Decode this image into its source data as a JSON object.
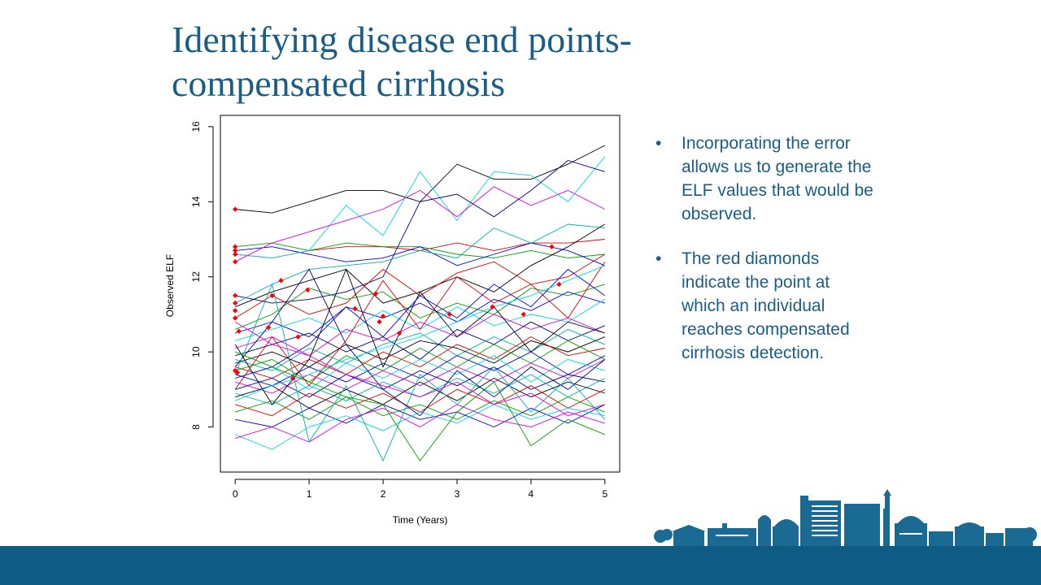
{
  "slide": {
    "title_lines": [
      "Identifying disease end points-",
      "compensated cirrhosis"
    ],
    "bullets": [
      "Incorporating the error allows us to generate the ELF values that would be observed.",
      "The red diamonds indicate the point at which an individual reaches compensated cirrhosis detection."
    ],
    "bullet_symbol": "•",
    "colors": {
      "title": "#1a5d86",
      "bullets": "#1a5d86",
      "footer": "#0e5c84",
      "skyline": "#1a6a93"
    }
  },
  "chart_data": {
    "type": "line",
    "xlabel": "Time (Years)",
    "ylabel": "Observed ELF",
    "xlim": [
      -0.2,
      5.2
    ],
    "ylim": [
      6.8,
      16.3
    ],
    "xticks": [
      0,
      1,
      2,
      3,
      4,
      5
    ],
    "yticks": [
      8,
      10,
      12,
      14,
      16
    ],
    "x": [
      0,
      0.5,
      1,
      1.5,
      2,
      2.5,
      3,
      3.5,
      4,
      4.5,
      5
    ],
    "colors": [
      "#000000",
      "#dd0000",
      "#00a000",
      "#0000dd",
      "#00d8e8",
      "#e000e0",
      "#000080",
      "#00b0b0"
    ],
    "series": [
      {
        "values": [
          13.8,
          13.7,
          14.0,
          14.3,
          14.3,
          14.0,
          15.0,
          14.6,
          14.6,
          15.0,
          15.5
        ]
      },
      {
        "values": [
          12.6,
          12.5,
          12.7,
          12.8,
          12.8,
          12.7,
          12.9,
          12.7,
          12.9,
          12.9,
          13.0
        ]
      },
      {
        "values": [
          12.8,
          12.9,
          12.7,
          12.9,
          12.8,
          12.8,
          12.6,
          12.5,
          12.7,
          12.5,
          12.6
        ]
      },
      {
        "values": [
          12.7,
          12.8,
          12.6,
          12.4,
          12.5,
          12.8,
          12.3,
          12.6,
          12.9,
          12.7,
          12.3
        ]
      },
      {
        "values": [
          12.6,
          12.5,
          12.7,
          13.9,
          13.1,
          14.8,
          13.5,
          14.8,
          14.7,
          14.0,
          15.2
        ]
      },
      {
        "values": [
          12.4,
          12.9,
          13.2,
          13.5,
          13.8,
          14.3,
          13.6,
          14.4,
          13.9,
          14.3,
          13.8
        ]
      },
      {
        "values": [
          11.5,
          11.3,
          11.4,
          11.6,
          12.0,
          14.0,
          14.2,
          13.6,
          14.3,
          15.1,
          14.8
        ]
      },
      {
        "values": [
          11.3,
          11.8,
          12.2,
          12.3,
          12.4,
          12.7,
          12.5,
          13.3,
          12.9,
          13.4,
          13.3
        ]
      },
      {
        "values": [
          11.2,
          11.6,
          11.9,
          12.2,
          11.3,
          11.6,
          12.0,
          11.6,
          12.3,
          12.8,
          13.4
        ]
      },
      {
        "values": [
          10.9,
          11.5,
          11.0,
          11.3,
          12.2,
          11.5,
          12.1,
          12.4,
          11.8,
          12.0,
          12.6
        ]
      },
      {
        "values": [
          10.6,
          11.0,
          11.7,
          11.4,
          11.6,
          10.9,
          11.3,
          11.0,
          11.7,
          11.5,
          11.8
        ]
      },
      {
        "values": [
          10.5,
          10.8,
          10.4,
          11.2,
          10.9,
          11.3,
          10.8,
          11.4,
          11.1,
          11.6,
          11.3
        ]
      },
      {
        "values": [
          10.3,
          10.6,
          10.9,
          10.5,
          11.1,
          10.6,
          11.2,
          10.7,
          11.0,
          10.8,
          11.4
        ]
      },
      {
        "values": [
          10.1,
          10.4,
          9.9,
          10.6,
          10.3,
          10.8,
          10.4,
          11.0,
          10.6,
          10.9,
          10.5
        ]
      },
      {
        "values": [
          9.9,
          10.2,
          10.5,
          10.0,
          10.4,
          9.8,
          10.6,
          10.2,
          10.8,
          10.3,
          10.7
        ]
      },
      {
        "values": [
          9.8,
          9.5,
          10.1,
          9.7,
          10.2,
          10.5,
          9.9,
          10.4,
          10.0,
          10.6,
          10.2
        ]
      },
      {
        "values": [
          9.7,
          10.0,
          9.6,
          10.2,
          9.8,
          10.3,
          10.1,
          9.7,
          10.3,
          10.0,
          10.4
        ]
      },
      {
        "values": [
          9.6,
          9.3,
          9.8,
          9.4,
          10.0,
          9.6,
          10.2,
          9.8,
          10.4,
          9.9,
          10.1
        ]
      },
      {
        "values": [
          9.5,
          9.8,
          9.2,
          9.9,
          9.5,
          10.1,
          9.6,
          10.2,
          9.7,
          10.3,
          9.8
        ]
      },
      {
        "values": [
          9.4,
          9.1,
          9.6,
          9.2,
          9.7,
          9.3,
          9.9,
          9.5,
          10.0,
          9.4,
          9.9
        ]
      },
      {
        "values": [
          9.3,
          9.6,
          9.0,
          9.7,
          9.3,
          9.8,
          9.4,
          9.9,
          9.2,
          9.8,
          9.5
        ]
      },
      {
        "values": [
          9.2,
          8.9,
          9.4,
          9.0,
          9.5,
          9.1,
          9.6,
          9.2,
          9.7,
          9.3,
          9.8
        ]
      },
      {
        "values": [
          9.0,
          9.3,
          8.8,
          9.4,
          9.0,
          9.5,
          9.1,
          9.6,
          9.0,
          9.4,
          9.2
        ]
      },
      {
        "values": [
          8.9,
          8.6,
          9.1,
          8.7,
          9.2,
          8.8,
          9.3,
          8.9,
          9.4,
          8.8,
          9.3
        ]
      },
      {
        "values": [
          8.8,
          9.1,
          8.5,
          9.0,
          8.6,
          9.2,
          8.7,
          9.3,
          8.8,
          9.2,
          8.9
        ]
      },
      {
        "values": [
          8.6,
          8.3,
          8.9,
          8.5,
          8.9,
          8.4,
          9.0,
          8.6,
          9.1,
          8.5,
          9.0
        ]
      },
      {
        "values": [
          8.4,
          8.7,
          8.2,
          8.8,
          8.3,
          8.6,
          8.2,
          8.7,
          8.3,
          8.8,
          8.4
        ]
      },
      {
        "values": [
          8.2,
          8.0,
          8.5,
          8.1,
          8.6,
          8.2,
          8.4,
          8.0,
          8.5,
          8.1,
          8.6
        ]
      },
      {
        "values": [
          7.8,
          7.4,
          8.0,
          8.3,
          7.9,
          8.4,
          8.1,
          8.6,
          8.2,
          8.5,
          8.3
        ]
      },
      {
        "values": [
          7.7,
          8.0,
          7.6,
          8.2,
          8.5,
          8.0,
          8.6,
          8.2,
          8.0,
          8.4,
          8.1
        ]
      },
      {
        "values": [
          9.6,
          10.8,
          12.2,
          10.2,
          9.0,
          8.3,
          9.5,
          8.8,
          9.6,
          9.0,
          9.8
        ]
      },
      {
        "values": [
          9.4,
          11.8,
          7.6,
          9.1,
          7.1,
          9.4,
          8.6,
          9.6,
          8.4,
          9.3,
          8.2
        ]
      },
      {
        "values": [
          10.2,
          8.6,
          9.8,
          12.2,
          9.6,
          11.6,
          10.4,
          11.2,
          10.0,
          10.8,
          10.5
        ]
      },
      {
        "values": [
          9.0,
          10.4,
          9.1,
          10.3,
          11.9,
          10.6,
          12.0,
          11.3,
          11.8,
          10.9,
          12.4
        ]
      },
      {
        "values": [
          10.0,
          9.6,
          9.2,
          8.8,
          8.6,
          7.1,
          8.4,
          9.2,
          7.5,
          8.2,
          7.8
        ]
      },
      {
        "values": [
          9.3,
          9.6,
          10.2,
          11.2,
          10.4,
          11.5,
          10.9,
          11.8,
          11.2,
          12.2,
          11.5
        ]
      },
      {
        "values": [
          8.7,
          9.1,
          9.4,
          9.8,
          10.1,
          10.4,
          10.8,
          11.2,
          11.5,
          11.9,
          12.3
        ]
      },
      {
        "values": [
          10.8,
          10.2,
          9.9,
          9.4,
          9.1,
          8.8,
          9.2,
          8.6,
          8.9,
          8.3,
          8.6
        ]
      }
    ],
    "events": [
      {
        "x": 0,
        "y": 13.8
      },
      {
        "x": 0,
        "y": 12.8
      },
      {
        "x": 0,
        "y": 12.7
      },
      {
        "x": 0,
        "y": 12.6
      },
      {
        "x": 0,
        "y": 12.4
      },
      {
        "x": 0,
        "y": 11.5
      },
      {
        "x": 0,
        "y": 11.3
      },
      {
        "x": 0,
        "y": 11.1
      },
      {
        "x": 0,
        "y": 10.9
      },
      {
        "x": 0.05,
        "y": 10.55
      },
      {
        "x": 0,
        "y": 9.5
      },
      {
        "x": 0.03,
        "y": 9.45
      },
      {
        "x": 0.45,
        "y": 10.65
      },
      {
        "x": 0.5,
        "y": 11.5
      },
      {
        "x": 0.62,
        "y": 11.9
      },
      {
        "x": 0.78,
        "y": 9.3
      },
      {
        "x": 0.85,
        "y": 10.4
      },
      {
        "x": 0.98,
        "y": 11.65
      },
      {
        "x": 1.62,
        "y": 11.15
      },
      {
        "x": 1.9,
        "y": 11.55
      },
      {
        "x": 1.95,
        "y": 10.8
      },
      {
        "x": 2.0,
        "y": 10.95
      },
      {
        "x": 2.22,
        "y": 10.5
      },
      {
        "x": 2.9,
        "y": 11.0
      },
      {
        "x": 3.48,
        "y": 11.2
      },
      {
        "x": 3.9,
        "y": 11.0
      },
      {
        "x": 4.28,
        "y": 12.8
      },
      {
        "x": 4.38,
        "y": 11.8
      }
    ]
  }
}
